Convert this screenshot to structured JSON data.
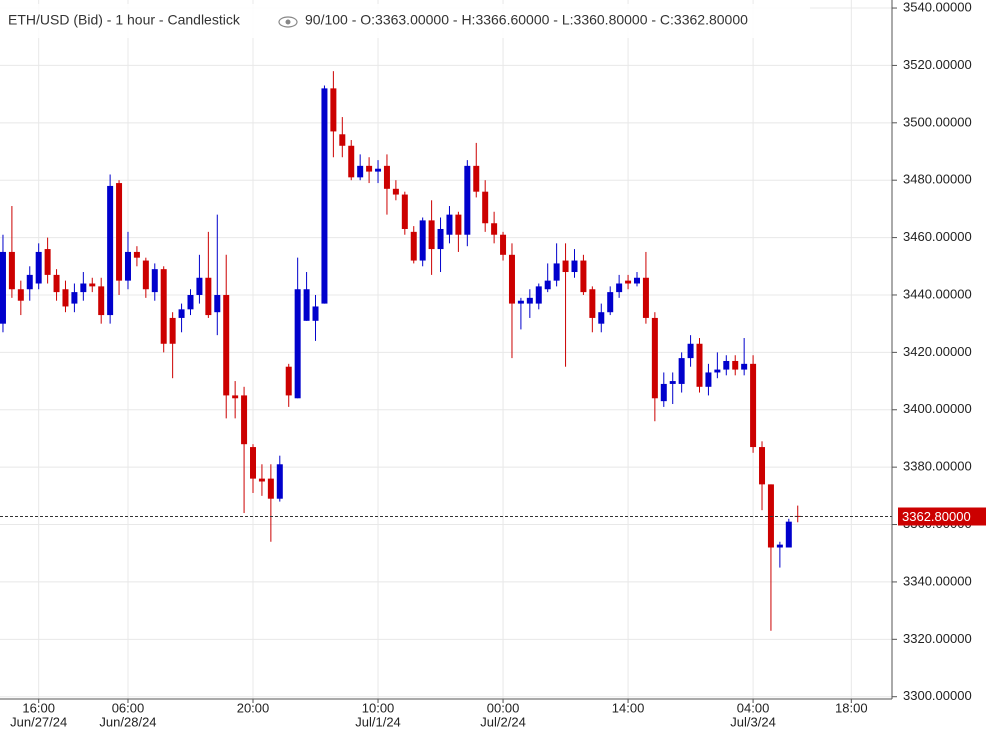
{
  "chart_data": {
    "type": "candlestick",
    "title": "ETH/USD (Bid) - 1 hour - Candlestick",
    "header_values": "90/100 - O:3363.00000 - H:3366.60000 - L:3360.80000 - C:3362.80000",
    "categories": [
      null,
      null,
      null,
      null,
      "16:00",
      null,
      null,
      null,
      null,
      null,
      null,
      null,
      null,
      null,
      "06:00",
      null,
      null,
      null,
      null,
      null,
      null,
      null,
      null,
      null,
      null,
      null,
      null,
      null,
      "20:00",
      null,
      null,
      null,
      null,
      null,
      null,
      null,
      null,
      null,
      null,
      null,
      null,
      null,
      "10:00",
      null,
      null,
      null,
      null,
      null,
      null,
      null,
      null,
      null,
      null,
      null,
      null,
      null,
      "00:00",
      null,
      null,
      null,
      null,
      null,
      null,
      null,
      null,
      null,
      null,
      null,
      null,
      null,
      "14:00",
      null,
      null,
      null,
      null,
      null,
      null,
      null,
      null,
      null,
      null,
      null,
      null,
      null,
      "04:00",
      null,
      null,
      null,
      null,
      null,
      null,
      null,
      null,
      null,
      null,
      "18:00",
      null,
      null,
      null,
      null
    ],
    "category_dates": [
      null,
      null,
      null,
      null,
      "Jun/27/24",
      null,
      null,
      null,
      null,
      null,
      null,
      null,
      null,
      null,
      "Jun/28/24",
      null,
      null,
      null,
      null,
      null,
      null,
      null,
      null,
      null,
      null,
      null,
      null,
      null,
      null,
      null,
      null,
      null,
      null,
      null,
      null,
      null,
      null,
      null,
      null,
      null,
      null,
      null,
      "Jul/1/24",
      null,
      null,
      null,
      null,
      null,
      null,
      null,
      null,
      null,
      null,
      null,
      null,
      null,
      "Jul/2/24",
      null,
      null,
      null,
      null,
      null,
      null,
      null,
      null,
      null,
      null,
      null,
      null,
      null,
      null,
      null,
      null,
      null,
      null,
      null,
      null,
      null,
      null,
      null,
      null,
      null,
      null,
      null,
      "Jul/3/24",
      null,
      null,
      null,
      null,
      null,
      null,
      null,
      null,
      null,
      null,
      null,
      null,
      null,
      null,
      null
    ],
    "open": [
      3430,
      3455,
      3442,
      3442,
      3444,
      3456,
      3447,
      3442,
      3437,
      3441,
      3444,
      3443,
      3433,
      3479,
      3445,
      3455,
      3452,
      3441,
      3449,
      3432,
      3432,
      3435,
      3440,
      3446,
      3434,
      3440,
      3405,
      3405,
      3387,
      3376,
      3376,
      3369,
      3415,
      3404,
      3431,
      3431,
      3437,
      3512,
      3496,
      3492,
      3481,
      3485,
      3483,
      3485,
      3477,
      3475,
      3462,
      3452,
      3466,
      3456,
      3461,
      3468,
      3461,
      3485,
      3476,
      3465,
      3461,
      3454,
      3437,
      3437,
      3437,
      3442,
      3445,
      3452,
      3448,
      3452,
      3442,
      3430,
      3434,
      3441,
      3445,
      3444,
      3446,
      3432,
      3403,
      3409,
      3409,
      3418,
      3423,
      3408,
      3413,
      3414,
      3417,
      3414,
      3416,
      3387,
      3374,
      3352,
      3352,
      3363,
      null,
      null,
      null,
      null,
      null,
      null,
      null,
      null,
      null,
      null
    ],
    "high": [
      3461,
      3471,
      3445,
      3450,
      3458,
      3460,
      3449,
      3445,
      3444,
      3448,
      3446,
      3446,
      3482,
      3480,
      3462,
      3457,
      3453,
      3451,
      3450,
      3434,
      3437,
      3442,
      3454,
      3462,
      3468,
      3454,
      3410,
      3408,
      3388,
      3381,
      3381,
      3384,
      3416,
      3453,
      3448,
      3440,
      3513,
      3518,
      3502,
      3494,
      3489,
      3488,
      3487,
      3489,
      3480,
      3476,
      3464,
      3467,
      3473,
      3467,
      3471,
      3469,
      3487,
      3493,
      3480,
      3469,
      3462,
      3458,
      3439,
      3442,
      3444,
      3451,
      3458,
      3458,
      3456,
      3454,
      3443,
      3437,
      3443,
      3447,
      3447,
      3448,
      3455,
      3434,
      3413,
      3413,
      3420,
      3426,
      3425,
      3416,
      3420,
      3419,
      3419,
      3425,
      3419,
      3389,
      3374,
      3354,
      3362,
      3366.6,
      null,
      null,
      null,
      null,
      null,
      null,
      null,
      null,
      null,
      null
    ],
    "low": [
      3427,
      3439,
      3433,
      3438,
      3442,
      3444,
      3438,
      3434,
      3434,
      3438,
      3441,
      3430,
      3430,
      3440,
      3442,
      3450,
      3439,
      3438,
      3420,
      3411,
      3427,
      3433,
      3437,
      3432,
      3426,
      3397,
      3397,
      3364,
      3371,
      3370,
      3354,
      3368,
      3401,
      3404,
      3431,
      3424,
      3437,
      3488,
      3488,
      3480,
      3480,
      3479,
      3479,
      3468,
      3473,
      3461,
      3451,
      3450,
      3447,
      3448,
      3458,
      3455,
      3457,
      3474,
      3462,
      3458,
      3452,
      3418,
      3428,
      3432,
      3435,
      3441,
      3443,
      3415,
      3446,
      3440,
      3427,
      3427,
      3433,
      3439,
      3442,
      3443,
      3430,
      3396,
      3401,
      3402,
      3406,
      3415,
      3406,
      3405,
      3411,
      3412,
      3412,
      3412,
      3385,
      3365,
      3323,
      3345,
      3352,
      3360.8,
      null,
      null,
      null,
      null,
      null,
      null,
      null,
      null,
      null,
      null
    ],
    "close": [
      3455,
      3442,
      3438,
      3447,
      3455,
      3447,
      3441,
      3436,
      3441,
      3444,
      3443,
      3433,
      3478,
      3445,
      3455,
      3453,
      3442,
      3449,
      3423,
      3423,
      3435,
      3440,
      3446,
      3433,
      3440,
      3405,
      3404,
      3388,
      3376,
      3375,
      3369,
      3381,
      3405,
      3442,
      3442,
      3436,
      3512,
      3497,
      3492,
      3481,
      3485,
      3483,
      3484,
      3477,
      3475,
      3463,
      3452,
      3466,
      3456,
      3463,
      3468,
      3461,
      3485,
      3476,
      3465,
      3461,
      3454,
      3437,
      3438,
      3439,
      3443,
      3445,
      3451,
      3448,
      3452,
      3441,
      3432,
      3434,
      3441,
      3444,
      3444,
      3446,
      3432,
      3404,
      3409,
      3410,
      3418,
      3423,
      3408,
      3413,
      3414,
      3417,
      3414,
      3416,
      3387,
      3374,
      3352,
      3353,
      3361,
      3362.8,
      null,
      null,
      null,
      null,
      null,
      null,
      null,
      null,
      null,
      null
    ],
    "up_color": "#0000cc",
    "down_color": "#cc0000",
    "ylim": [
      3299.2,
      3542.8
    ],
    "yticks": [
      {
        "value": 3300,
        "label": "3300.00000"
      },
      {
        "value": 3320,
        "label": "3320.00000"
      },
      {
        "value": 3340,
        "label": "3340.00000"
      },
      {
        "value": 3360,
        "label": "3360.00000"
      },
      {
        "value": 3380,
        "label": "3380.00000"
      },
      {
        "value": 3400,
        "label": "3400.00000"
      },
      {
        "value": 3420,
        "label": "3420.00000"
      },
      {
        "value": 3440,
        "label": "3440.00000"
      },
      {
        "value": 3460,
        "label": "3460.00000"
      },
      {
        "value": 3480,
        "label": "3480.00000"
      },
      {
        "value": 3500,
        "label": "3500.00000"
      },
      {
        "value": 3520,
        "label": "3520.00000"
      },
      {
        "value": 3540,
        "label": "3540.00000"
      }
    ],
    "last_price": {
      "value": 3362.8,
      "label": "3362.80000"
    },
    "grid": true
  }
}
